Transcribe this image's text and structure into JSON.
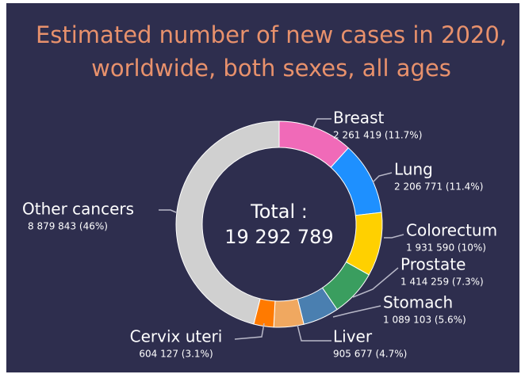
{
  "chart_data": {
    "type": "donut",
    "title": [
      "Estimated number of new cases in 2020,",
      "worldwide, both sexes, all ages"
    ],
    "center_text": [
      "Total :",
      "19 292 789"
    ],
    "categories": [
      "Breast",
      "Lung",
      "Colorectum",
      "Prostate",
      "Stomach",
      "Liver",
      "Cervix uteri",
      "Other cancers"
    ],
    "values": [
      2261419,
      2206771,
      1931590,
      1414259,
      1089103,
      905677,
      604127,
      8879843
    ],
    "value_labels": [
      "2 261 419 (11.7%)",
      "2 206 771 (11.4%)",
      "1 931 590 (10%)",
      "1 414 259 (7.3%)",
      "1 089 103 (5.6%)",
      "905 677 (4.7%)",
      "604 127 (3.1%)",
      "8 879 843 (46%)"
    ],
    "colors": [
      "#f06ab8",
      "#1e90ff",
      "#ffd000",
      "#3a9e5f",
      "#4a7fb0",
      "#f0a860",
      "#ff7a00",
      "#d0d0d0"
    ]
  }
}
